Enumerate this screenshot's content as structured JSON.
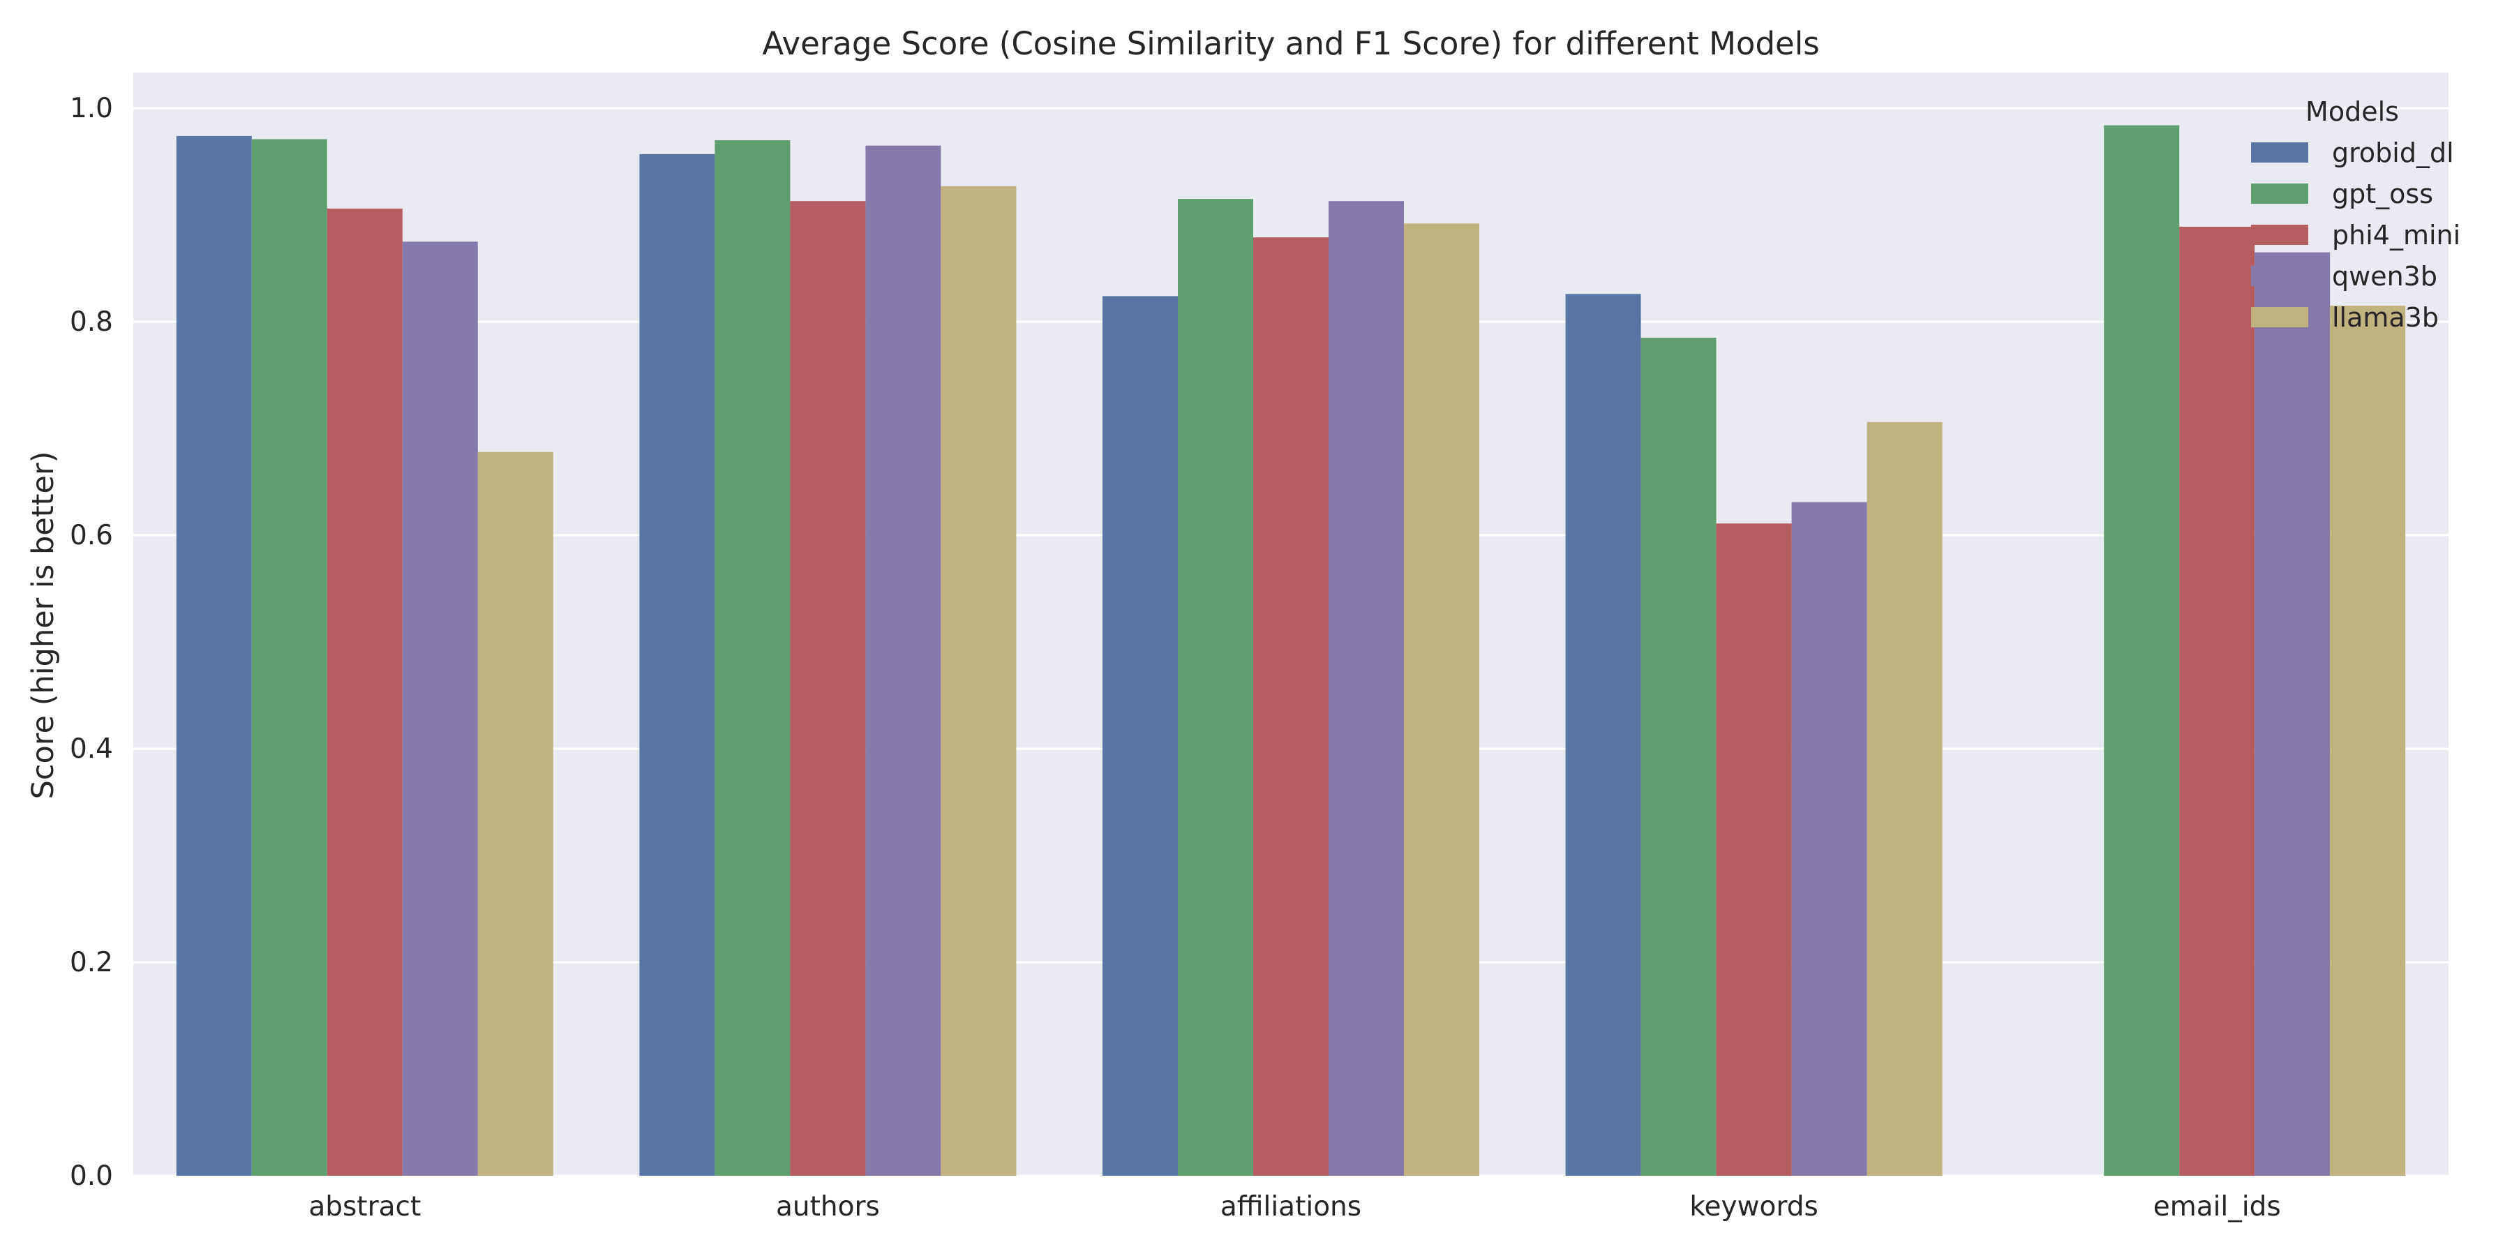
{
  "chart_data": {
    "type": "bar",
    "title": "Average Score (Cosine Similarity and F1 Score) for different Models",
    "xlabel": "",
    "ylabel": "Score (higher is better)",
    "ylim": [
      0,
      1.0
    ],
    "yticks": [
      "0.0",
      "0.2",
      "0.4",
      "0.6",
      "0.8",
      "1.0"
    ],
    "ytick_values": [
      0,
      0.2,
      0.4,
      0.6,
      0.8,
      1.0
    ],
    "grid": true,
    "legend_title": "Models",
    "legend_placement": "top-right",
    "categories": [
      "abstract",
      "authors",
      "affiliations",
      "keywords",
      "email_ids"
    ],
    "series": [
      {
        "name": "grobid_dl",
        "color": "#5875a4",
        "values": [
          0.974,
          0.957,
          0.824,
          0.826,
          null
        ]
      },
      {
        "name": "gpt_oss",
        "color": "#5f9e6e",
        "values": [
          0.971,
          0.97,
          0.915,
          0.785,
          0.984
        ]
      },
      {
        "name": "phi4_mini",
        "color": "#b55d60",
        "values": [
          0.906,
          0.913,
          0.879,
          0.611,
          0.889
        ]
      },
      {
        "name": "qwen3b",
        "color": "#857aab",
        "values": [
          0.875,
          0.965,
          0.913,
          0.631,
          0.865
        ]
      },
      {
        "name": "llama3b",
        "color": "#c1b37f",
        "values": [
          0.678,
          0.927,
          0.892,
          0.706,
          0.815
        ]
      }
    ],
    "plot_background": "#eaeaf2",
    "grid_color": "#ffffff"
  }
}
